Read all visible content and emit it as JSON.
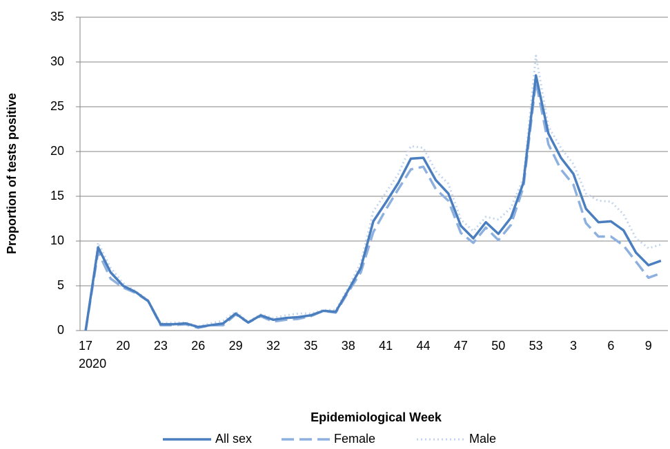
{
  "chart_data": {
    "type": "line",
    "x_label": "Epidemiological Week",
    "y_label": "Proportion of tests positive",
    "x_sublabel": "2020",
    "categories": [
      "17",
      null,
      null,
      "20",
      null,
      null,
      "23",
      null,
      null,
      "26",
      null,
      null,
      "29",
      null,
      null,
      "32",
      null,
      null,
      "35",
      null,
      null,
      "38",
      null,
      null,
      "41",
      null,
      null,
      "44",
      null,
      null,
      "47",
      null,
      null,
      "50",
      null,
      null,
      "53",
      null,
      null,
      "3",
      null,
      null,
      "6",
      null,
      null,
      "9",
      null
    ],
    "series": [
      {
        "name": "All sex",
        "color": "#4a7ebf",
        "dash": "solid",
        "values": [
          0,
          9.3,
          6.5,
          5.0,
          4.3,
          3.3,
          0.7,
          0.7,
          0.8,
          0.4,
          0.6,
          0.8,
          1.9,
          0.9,
          1.7,
          1.2,
          1.4,
          1.5,
          1.7,
          2.2,
          2.1,
          4.5,
          7.0,
          12.2,
          14.3,
          16.5,
          19.2,
          19.3,
          16.8,
          15.3,
          11.7,
          10.3,
          12.1,
          10.8,
          12.6,
          16.5,
          28.5,
          22.0,
          19.3,
          17.5,
          13.6,
          12.1,
          12.2,
          11.2,
          8.7,
          7.3,
          7.8
        ]
      },
      {
        "name": "Female",
        "color": "#8db0df",
        "dash": "dashed",
        "values": [
          0,
          8.8,
          5.8,
          4.8,
          4.2,
          3.3,
          0.6,
          0.6,
          0.7,
          0.3,
          0.6,
          0.6,
          1.8,
          0.9,
          1.6,
          1.0,
          1.2,
          1.3,
          1.6,
          2.2,
          2.0,
          4.3,
          6.5,
          11.0,
          13.5,
          15.8,
          18.0,
          18.3,
          15.8,
          14.5,
          10.9,
          9.8,
          11.5,
          10.1,
          11.8,
          16.0,
          27.8,
          20.8,
          18.0,
          16.3,
          12.0,
          10.5,
          10.5,
          9.5,
          7.7,
          5.9,
          6.4
        ]
      },
      {
        "name": "Male",
        "color": "#c3d5ee",
        "dash": "dotted",
        "values": [
          0,
          9.8,
          7.0,
          5.3,
          4.4,
          3.4,
          0.8,
          0.9,
          0.9,
          0.5,
          0.8,
          1.1,
          2.1,
          1.0,
          1.8,
          1.4,
          1.7,
          1.9,
          1.9,
          2.3,
          2.3,
          4.8,
          7.6,
          13.3,
          15.4,
          17.5,
          20.6,
          20.4,
          17.8,
          16.4,
          12.4,
          11.1,
          12.7,
          12.4,
          13.7,
          17.0,
          30.7,
          22.8,
          20.4,
          18.6,
          15.3,
          14.5,
          14.4,
          13.0,
          10.3,
          9.2,
          9.6
        ]
      }
    ],
    "ylim": [
      0,
      35
    ],
    "yticks": [
      0,
      5,
      10,
      15,
      20,
      25,
      30,
      35
    ],
    "grid": true,
    "legend": "bottom"
  }
}
